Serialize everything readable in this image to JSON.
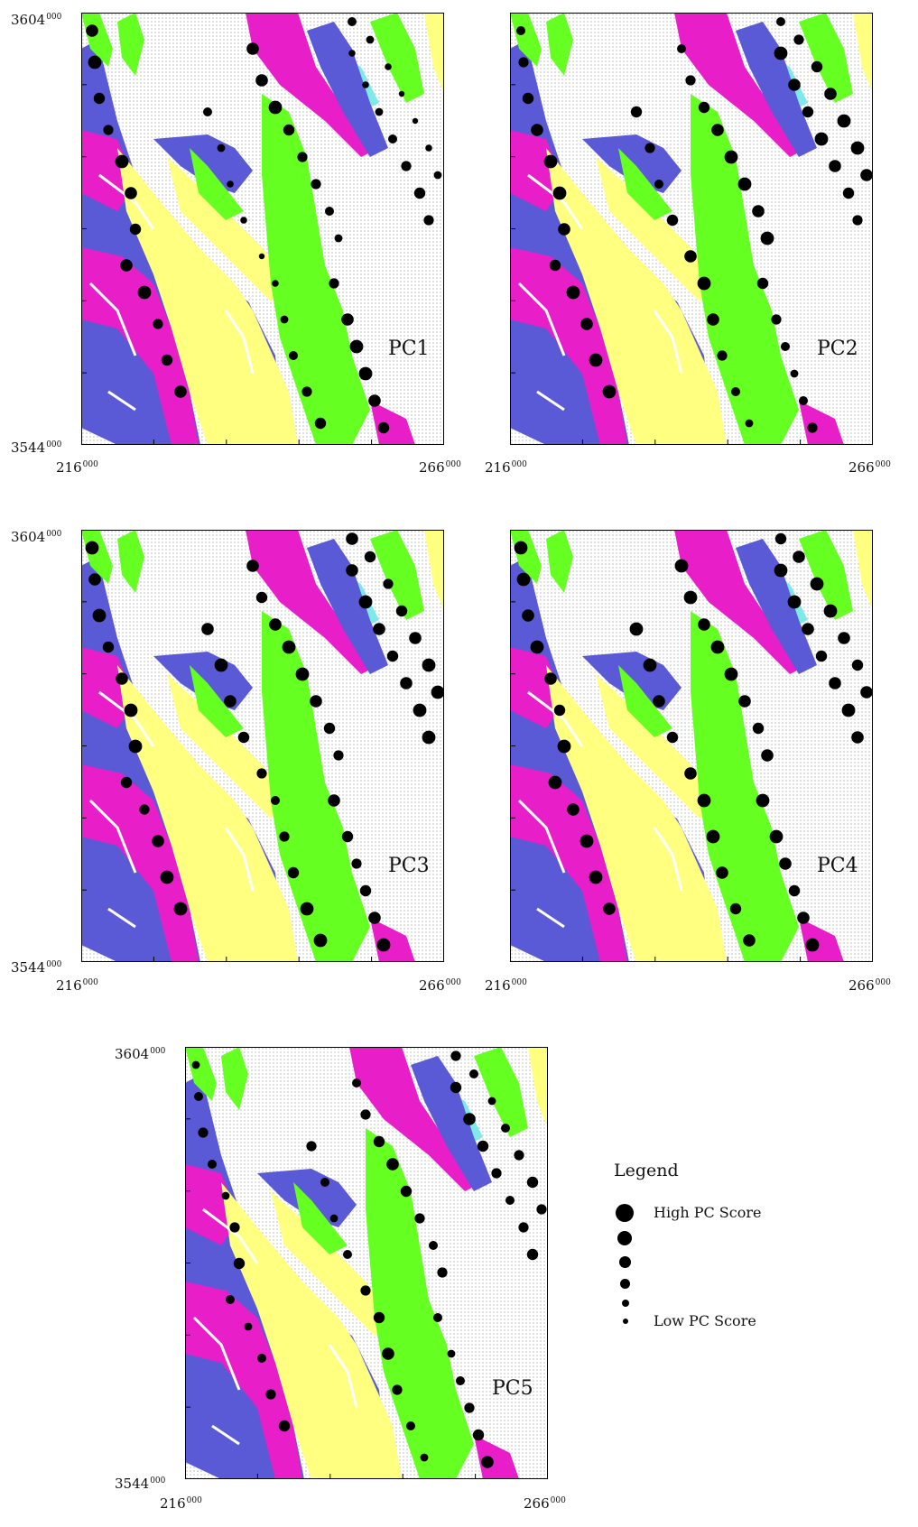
{
  "panels": [
    {
      "label": "PC1",
      "y_top": "3604",
      "y_bottom": "3544",
      "x_left": "216",
      "x_right": "266",
      "thousands": "000"
    },
    {
      "label": "PC2",
      "y_top": "",
      "y_bottom": "",
      "x_left": "216",
      "x_right": "266",
      "thousands": "000"
    },
    {
      "label": "PC3",
      "y_top": "3604",
      "y_bottom": "3544",
      "x_left": "216",
      "x_right": "266",
      "thousands": "000"
    },
    {
      "label": "PC4",
      "y_top": "",
      "y_bottom": "",
      "x_left": "216",
      "x_right": "266",
      "thousands": "000"
    },
    {
      "label": "PC5",
      "y_top": "3604",
      "y_bottom": "3544",
      "x_left": "216",
      "x_right": "266",
      "thousands": "000"
    }
  ],
  "legend": {
    "title": "Legend",
    "items": [
      {
        "label": "High PC Score",
        "size_level": 6
      },
      {
        "label": "",
        "size_level": 5
      },
      {
        "label": "",
        "size_level": 4
      },
      {
        "label": "",
        "size_level": 3
      },
      {
        "label": "",
        "size_level": 2
      },
      {
        "label": "Low PC Score",
        "size_level": 1
      }
    ]
  },
  "colors": {
    "background_units": "#d9d9d9",
    "blue_unit": "#5a5ad6",
    "magenta_unit": "#e81ec8",
    "yellow_unit": "#ffff80",
    "green_unit": "#66ff22",
    "cyan_unit": "#7fe8e8",
    "points": "#000000"
  },
  "point_scores": {
    "PC1": [
      0.8,
      0.9,
      0.7,
      0.6,
      0.9,
      0.8,
      0.7,
      0.8,
      0.9,
      0.6,
      0.7,
      0.8,
      0.5,
      0.4,
      0.3,
      0.3,
      0.2,
      0.3,
      0.4,
      0.5,
      0.6,
      0.7,
      0.8,
      0.8,
      0.9,
      0.7,
      0.6,
      0.6,
      0.5,
      0.4,
      0.3,
      0.3,
      0.4,
      0.5,
      0.6,
      0.7,
      0.6,
      0.5,
      0.4,
      0.3,
      0.2,
      0.2,
      0.3,
      0.4,
      0.6,
      0.8,
      0.9,
      0.9,
      0.8,
      0.7
    ],
    "PC2": [
      0.5,
      0.6,
      0.7,
      0.8,
      0.9,
      0.9,
      0.8,
      0.7,
      0.9,
      0.8,
      0.9,
      0.9,
      0.7,
      0.6,
      0.5,
      0.7,
      0.8,
      0.9,
      0.8,
      0.6,
      0.5,
      0.4,
      0.5,
      0.6,
      0.7,
      0.8,
      0.9,
      0.9,
      0.8,
      0.9,
      0.9,
      0.8,
      0.7,
      0.9,
      0.8,
      0.7,
      0.6,
      0.5,
      0.6,
      0.7,
      0.8,
      0.9,
      0.9,
      0.8,
      0.7,
      0.6,
      0.5,
      0.4,
      0.5,
      0.6
    ],
    "PC3": [
      0.9,
      0.8,
      0.9,
      0.7,
      0.8,
      0.9,
      0.9,
      0.7,
      0.6,
      0.8,
      0.9,
      0.9,
      0.8,
      0.9,
      0.8,
      0.7,
      0.6,
      0.5,
      0.6,
      0.7,
      0.9,
      0.9,
      0.8,
      0.7,
      0.8,
      0.9,
      0.9,
      0.8,
      0.7,
      0.6,
      0.8,
      0.9,
      0.8,
      0.7,
      0.8,
      0.9,
      0.9,
      0.8,
      0.7,
      0.6,
      0.7,
      0.8,
      0.9,
      0.9,
      0.8,
      0.7,
      0.6,
      0.7,
      0.8,
      0.9
    ],
    "PC4": [
      0.9,
      0.9,
      0.8,
      0.9,
      0.8,
      0.7,
      0.9,
      0.9,
      0.8,
      0.9,
      0.9,
      0.8,
      0.9,
      0.9,
      0.8,
      0.7,
      0.8,
      0.9,
      0.9,
      0.8,
      0.7,
      0.8,
      0.9,
      0.9,
      0.8,
      0.9,
      0.9,
      0.8,
      0.7,
      0.8,
      0.9,
      0.9,
      0.8,
      0.7,
      0.8,
      0.9,
      0.8,
      0.7,
      0.8,
      0.9,
      0.9,
      0.8,
      0.7,
      0.8,
      0.9,
      0.9,
      0.8,
      0.7,
      0.8,
      0.9
    ],
    "PC5": [
      0.4,
      0.5,
      0.6,
      0.5,
      0.4,
      0.6,
      0.7,
      0.5,
      0.4,
      0.5,
      0.6,
      0.7,
      0.6,
      0.5,
      0.4,
      0.5,
      0.6,
      0.7,
      0.8,
      0.6,
      0.5,
      0.4,
      0.5,
      0.6,
      0.7,
      0.8,
      0.7,
      0.6,
      0.5,
      0.6,
      0.7,
      0.8,
      0.7,
      0.6,
      0.5,
      0.6,
      0.7,
      0.6,
      0.5,
      0.4,
      0.5,
      0.6,
      0.7,
      0.6,
      0.5,
      0.4,
      0.5,
      0.6,
      0.7,
      0.8
    ]
  }
}
